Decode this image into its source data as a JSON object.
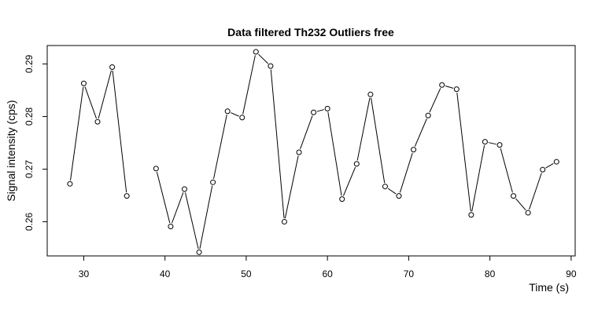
{
  "chart_data": {
    "type": "line",
    "title": "Data filtered Th232 Outliers free",
    "xlabel": "Time (s)",
    "ylabel": "Signal intensity (cps)",
    "xlim": [
      25.5,
      90.5
    ],
    "ylim": [
      0.2535,
      0.2935
    ],
    "xticks": [
      30,
      40,
      50,
      60,
      70,
      80,
      90
    ],
    "yticks": [
      0.26,
      0.27,
      0.28,
      0.29
    ],
    "grid": false,
    "markers": "open-circle",
    "segments": [
      {
        "x": [
          28.3,
          30.0,
          31.7,
          33.5,
          35.3
        ],
        "y": [
          0.2672,
          0.2863,
          0.279,
          0.2894,
          0.2649
        ]
      },
      {
        "x": [
          38.9,
          40.7,
          42.4,
          44.2,
          45.9,
          47.7,
          49.5,
          51.2,
          53.0,
          54.7,
          56.5,
          58.3,
          60.0,
          61.8,
          63.6,
          65.3,
          67.1,
          68.8,
          70.6,
          72.4,
          74.1,
          75.9,
          77.7,
          79.4,
          81.2,
          82.9,
          84.7,
          86.5,
          88.2
        ],
        "y": [
          0.2701,
          0.2591,
          0.2662,
          0.2542,
          0.2675,
          0.281,
          0.2798,
          0.2923,
          0.2896,
          0.26,
          0.2732,
          0.2808,
          0.2815,
          0.2643,
          0.271,
          0.2842,
          0.2667,
          0.2649,
          0.2737,
          0.2802,
          0.286,
          0.2852,
          0.2613,
          0.2752,
          0.2746,
          0.2649,
          0.2617,
          0.2699,
          0.2714
        ]
      }
    ]
  }
}
